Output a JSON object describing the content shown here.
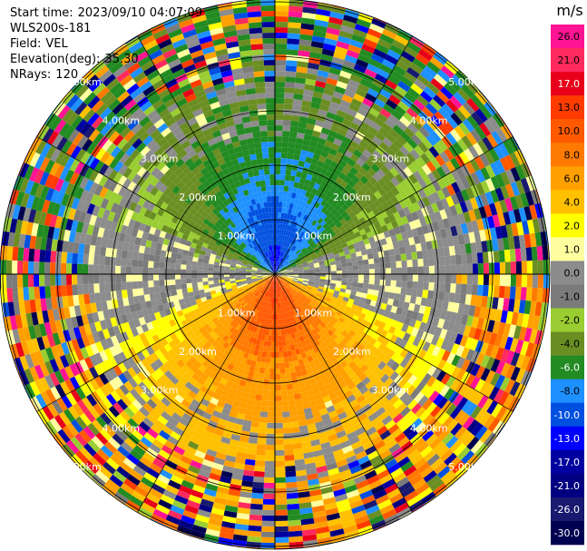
{
  "header": {
    "start_time_label": "Start time:",
    "start_time": "2023/09/10 04:07:09",
    "station": "WLS200s-181",
    "field_label": "Field:",
    "field": "VEL",
    "elevation_label": "Elevation(deg):",
    "elevation": "35.30",
    "nrays_label": "NRays:",
    "nrays": "120"
  },
  "chart_data": {
    "type": "heatmap",
    "projection": "polar-ppi",
    "field": "VEL",
    "nrays": 120,
    "range_rings_km": [
      1,
      2,
      3,
      4,
      5
    ],
    "range_ring_labels": [
      "1.00km",
      "2.00km",
      "3.00km",
      "4.00km",
      "5.00km"
    ],
    "max_range_km": 6.3,
    "color_scale": {
      "unit": "m/s",
      "ticks": [
        "26.0",
        "21.0",
        "17.0",
        "13.0",
        "10.0",
        "8.0",
        "6.0",
        "4.0",
        "2.0",
        "1.0",
        "0.0",
        "-1.0",
        "-2.0",
        "-4.0",
        "-6.0",
        "-8.0",
        "-10.0",
        "-13.0",
        "-17.0",
        "-21.0",
        "-26.0",
        "-30.0"
      ],
      "colors": [
        "#ff1493",
        "#ff2a5e",
        "#e8001a",
        "#ff3b00",
        "#ff5a00",
        "#ff7a00",
        "#ffa000",
        "#ffc000",
        "#ffff00",
        "#ffffa0",
        "#8c8c8c",
        "#7b7b7b",
        "#9acd32",
        "#6b8e23",
        "#228b22",
        "#1e90ff",
        "#0050e0",
        "#0000ff",
        "#0000a0",
        "#000080",
        "#191970",
        "#000050"
      ]
    },
    "pattern": {
      "approaching_sector": "north",
      "receding_sector": "south",
      "approaching_peak": "-13.0",
      "receding_peak": "13.0"
    }
  }
}
